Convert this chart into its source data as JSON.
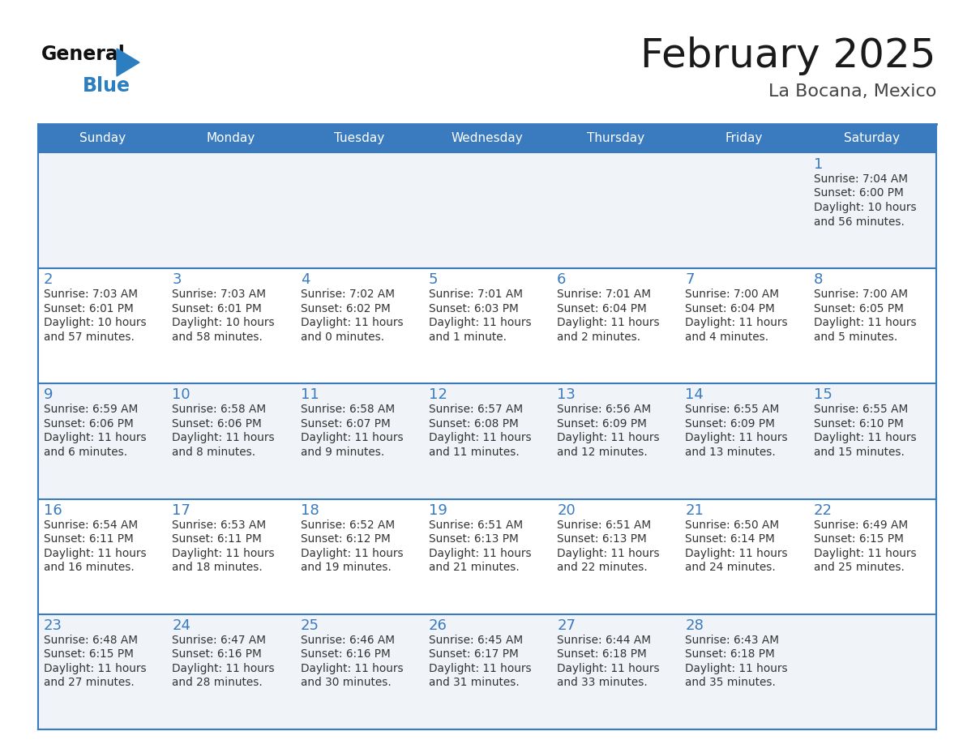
{
  "title": "February 2025",
  "subtitle": "La Bocana, Mexico",
  "days_of_week": [
    "Sunday",
    "Monday",
    "Tuesday",
    "Wednesday",
    "Thursday",
    "Friday",
    "Saturday"
  ],
  "header_bg_color": "#3a7abf",
  "header_text_color": "#ffffff",
  "row_bg_colors": [
    "#f0f4f8",
    "#ffffff"
  ],
  "day_num_color": "#3a7abf",
  "text_color": "#333333",
  "border_color": "#3a7abf",
  "title_color": "#1a1a1a",
  "subtitle_color": "#444444",
  "calendar_data": [
    {
      "day": 1,
      "col": 6,
      "row": 0,
      "sunrise": "7:04 AM",
      "sunset": "6:00 PM",
      "daylight_h": "10 hours",
      "daylight_m": "and 56 minutes."
    },
    {
      "day": 2,
      "col": 0,
      "row": 1,
      "sunrise": "7:03 AM",
      "sunset": "6:01 PM",
      "daylight_h": "10 hours",
      "daylight_m": "and 57 minutes."
    },
    {
      "day": 3,
      "col": 1,
      "row": 1,
      "sunrise": "7:03 AM",
      "sunset": "6:01 PM",
      "daylight_h": "10 hours",
      "daylight_m": "and 58 minutes."
    },
    {
      "day": 4,
      "col": 2,
      "row": 1,
      "sunrise": "7:02 AM",
      "sunset": "6:02 PM",
      "daylight_h": "11 hours",
      "daylight_m": "and 0 minutes."
    },
    {
      "day": 5,
      "col": 3,
      "row": 1,
      "sunrise": "7:01 AM",
      "sunset": "6:03 PM",
      "daylight_h": "11 hours",
      "daylight_m": "and 1 minute."
    },
    {
      "day": 6,
      "col": 4,
      "row": 1,
      "sunrise": "7:01 AM",
      "sunset": "6:04 PM",
      "daylight_h": "11 hours",
      "daylight_m": "and 2 minutes."
    },
    {
      "day": 7,
      "col": 5,
      "row": 1,
      "sunrise": "7:00 AM",
      "sunset": "6:04 PM",
      "daylight_h": "11 hours",
      "daylight_m": "and 4 minutes."
    },
    {
      "day": 8,
      "col": 6,
      "row": 1,
      "sunrise": "7:00 AM",
      "sunset": "6:05 PM",
      "daylight_h": "11 hours",
      "daylight_m": "and 5 minutes."
    },
    {
      "day": 9,
      "col": 0,
      "row": 2,
      "sunrise": "6:59 AM",
      "sunset": "6:06 PM",
      "daylight_h": "11 hours",
      "daylight_m": "and 6 minutes."
    },
    {
      "day": 10,
      "col": 1,
      "row": 2,
      "sunrise": "6:58 AM",
      "sunset": "6:06 PM",
      "daylight_h": "11 hours",
      "daylight_m": "and 8 minutes."
    },
    {
      "day": 11,
      "col": 2,
      "row": 2,
      "sunrise": "6:58 AM",
      "sunset": "6:07 PM",
      "daylight_h": "11 hours",
      "daylight_m": "and 9 minutes."
    },
    {
      "day": 12,
      "col": 3,
      "row": 2,
      "sunrise": "6:57 AM",
      "sunset": "6:08 PM",
      "daylight_h": "11 hours",
      "daylight_m": "and 11 minutes."
    },
    {
      "day": 13,
      "col": 4,
      "row": 2,
      "sunrise": "6:56 AM",
      "sunset": "6:09 PM",
      "daylight_h": "11 hours",
      "daylight_m": "and 12 minutes."
    },
    {
      "day": 14,
      "col": 5,
      "row": 2,
      "sunrise": "6:55 AM",
      "sunset": "6:09 PM",
      "daylight_h": "11 hours",
      "daylight_m": "and 13 minutes."
    },
    {
      "day": 15,
      "col": 6,
      "row": 2,
      "sunrise": "6:55 AM",
      "sunset": "6:10 PM",
      "daylight_h": "11 hours",
      "daylight_m": "and 15 minutes."
    },
    {
      "day": 16,
      "col": 0,
      "row": 3,
      "sunrise": "6:54 AM",
      "sunset": "6:11 PM",
      "daylight_h": "11 hours",
      "daylight_m": "and 16 minutes."
    },
    {
      "day": 17,
      "col": 1,
      "row": 3,
      "sunrise": "6:53 AM",
      "sunset": "6:11 PM",
      "daylight_h": "11 hours",
      "daylight_m": "and 18 minutes."
    },
    {
      "day": 18,
      "col": 2,
      "row": 3,
      "sunrise": "6:52 AM",
      "sunset": "6:12 PM",
      "daylight_h": "11 hours",
      "daylight_m": "and 19 minutes."
    },
    {
      "day": 19,
      "col": 3,
      "row": 3,
      "sunrise": "6:51 AM",
      "sunset": "6:13 PM",
      "daylight_h": "11 hours",
      "daylight_m": "and 21 minutes."
    },
    {
      "day": 20,
      "col": 4,
      "row": 3,
      "sunrise": "6:51 AM",
      "sunset": "6:13 PM",
      "daylight_h": "11 hours",
      "daylight_m": "and 22 minutes."
    },
    {
      "day": 21,
      "col": 5,
      "row": 3,
      "sunrise": "6:50 AM",
      "sunset": "6:14 PM",
      "daylight_h": "11 hours",
      "daylight_m": "and 24 minutes."
    },
    {
      "day": 22,
      "col": 6,
      "row": 3,
      "sunrise": "6:49 AM",
      "sunset": "6:15 PM",
      "daylight_h": "11 hours",
      "daylight_m": "and 25 minutes."
    },
    {
      "day": 23,
      "col": 0,
      "row": 4,
      "sunrise": "6:48 AM",
      "sunset": "6:15 PM",
      "daylight_h": "11 hours",
      "daylight_m": "and 27 minutes."
    },
    {
      "day": 24,
      "col": 1,
      "row": 4,
      "sunrise": "6:47 AM",
      "sunset": "6:16 PM",
      "daylight_h": "11 hours",
      "daylight_m": "and 28 minutes."
    },
    {
      "day": 25,
      "col": 2,
      "row": 4,
      "sunrise": "6:46 AM",
      "sunset": "6:16 PM",
      "daylight_h": "11 hours",
      "daylight_m": "and 30 minutes."
    },
    {
      "day": 26,
      "col": 3,
      "row": 4,
      "sunrise": "6:45 AM",
      "sunset": "6:17 PM",
      "daylight_h": "11 hours",
      "daylight_m": "and 31 minutes."
    },
    {
      "day": 27,
      "col": 4,
      "row": 4,
      "sunrise": "6:44 AM",
      "sunset": "6:18 PM",
      "daylight_h": "11 hours",
      "daylight_m": "and 33 minutes."
    },
    {
      "day": 28,
      "col": 5,
      "row": 4,
      "sunrise": "6:43 AM",
      "sunset": "6:18 PM",
      "daylight_h": "11 hours",
      "daylight_m": "and 35 minutes."
    }
  ]
}
